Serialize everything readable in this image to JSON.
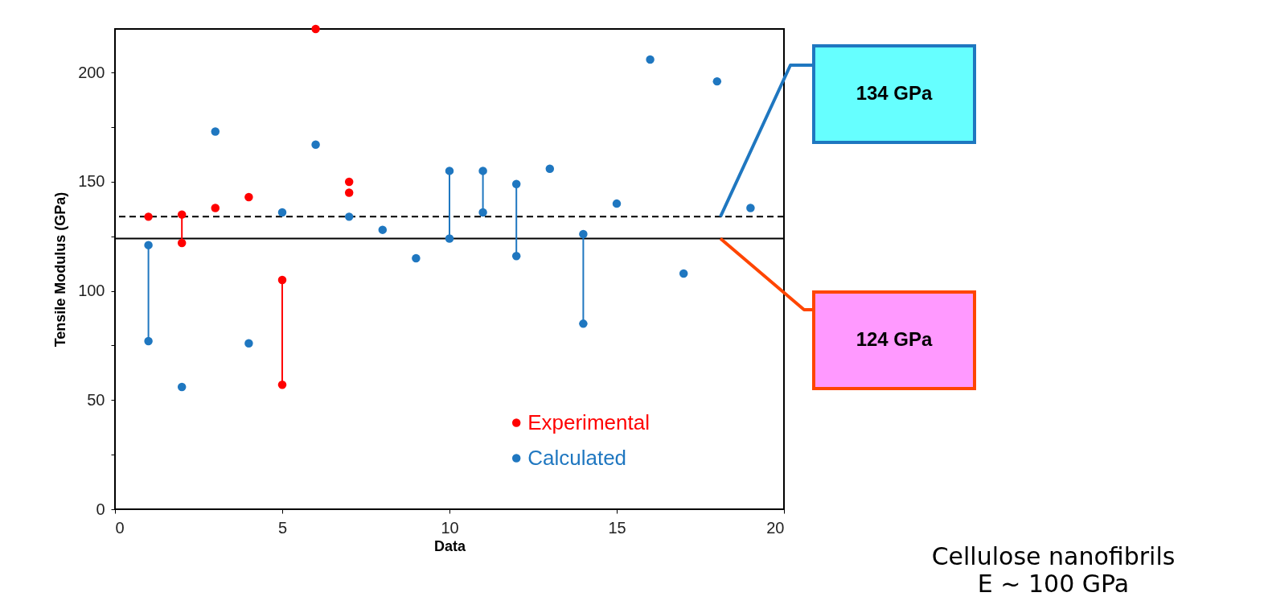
{
  "chart_data": {
    "type": "scatter",
    "xlabel": "Data",
    "ylabel": "Tensile Modulus (GPa)",
    "xlim": [
      0,
      20
    ],
    "xticks": [
      0,
      5,
      10,
      15,
      20
    ],
    "ylim": [
      0,
      220
    ],
    "yticks": [
      0,
      {
        "value": 25,
        "label": null
      },
      50,
      {
        "value": 75,
        "label": null
      },
      100,
      {
        "value": 125,
        "label": null
      },
      150,
      {
        "value": 175,
        "label": null
      },
      200
    ],
    "grid": false,
    "legend": "bottom",
    "marker": "circle",
    "series": [
      {
        "name": "Experimental",
        "color": "#ff0000",
        "x": [
          1,
          2,
          2,
          3,
          4,
          5,
          5,
          6,
          7,
          7
        ],
        "values": [
          134,
          135,
          122,
          138,
          143,
          105,
          57,
          220,
          150,
          145
        ]
      },
      {
        "name": "Calculated",
        "color": "#1f77c0",
        "x": [
          1,
          1,
          2,
          3,
          4,
          5,
          6,
          7,
          8,
          9,
          10,
          10,
          11,
          11,
          12,
          12,
          13,
          14,
          14,
          15,
          16,
          17,
          18,
          19
        ],
        "values": [
          121,
          77,
          56,
          173,
          76,
          136,
          167,
          134,
          128,
          115,
          155,
          124,
          155,
          136,
          149,
          116,
          156,
          126,
          85,
          140,
          206,
          108,
          196,
          138
        ]
      },
      {
        "type": "line",
        "color": "#ff0000",
        "line_style": "solid",
        "marker": "none",
        "x": [
          2,
          2,
          null,
          5,
          5
        ],
        "values": [
          135,
          122,
          null,
          105,
          57
        ]
      },
      {
        "type": "line",
        "color": "#1f77c0",
        "line_style": "solid",
        "marker": "none",
        "x": [
          1,
          1,
          null,
          10,
          10,
          null,
          11,
          11,
          null,
          12,
          12,
          null,
          14,
          14
        ],
        "values": [
          121,
          77,
          null,
          155,
          124,
          null,
          155,
          136,
          null,
          149,
          116,
          null,
          126,
          85
        ]
      }
    ],
    "ref_lines": [
      {
        "axis": "y",
        "value": 134,
        "label": "134 GPa",
        "color": "#000000",
        "line_style": "dashed"
      },
      {
        "axis": "y",
        "value": 124,
        "label": "124 GPa",
        "color": "#000000",
        "line_style": "solid"
      }
    ],
    "annotations": [
      "Cellulose nanofibrils\nE ~ 100 GPa"
    ]
  }
}
